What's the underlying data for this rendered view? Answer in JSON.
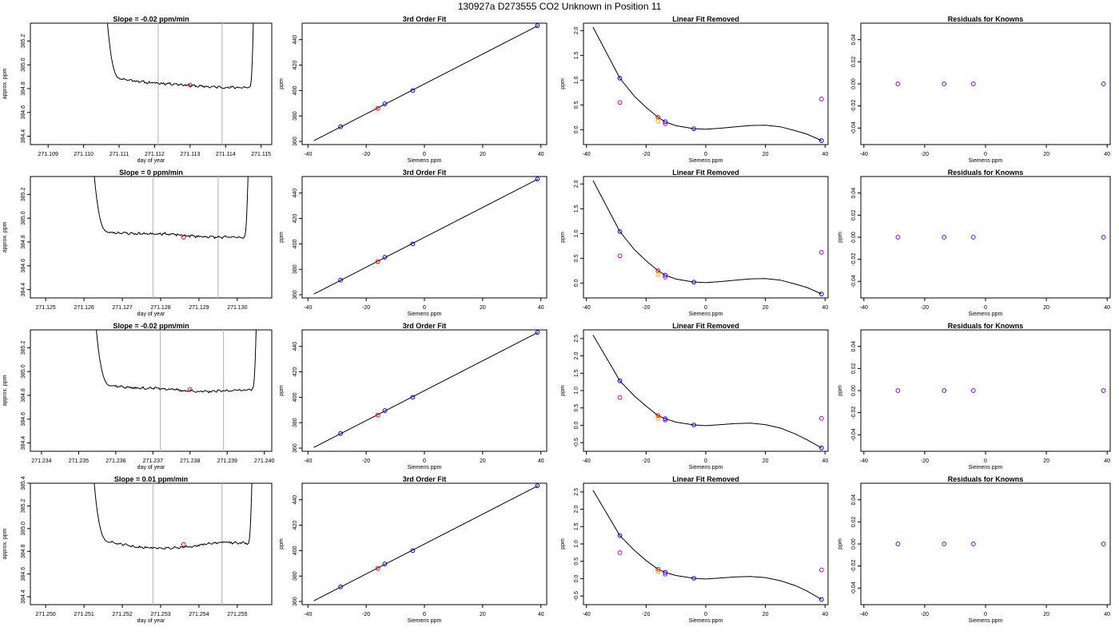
{
  "figure": {
    "suptitle": "130927a     D273555   CO2 Unknown in Position  11"
  },
  "colors": {
    "known": "#0000ff",
    "sample": "#ff0000",
    "orange": "#ffa500",
    "magenta": "#cc00cc",
    "purple": "#7f00ff",
    "marker_lines": "#bdbdbd"
  },
  "chart_data": [
    {
      "type": "line",
      "title": "Slope =   -0.02  ppm/min",
      "xlabel": "day of year",
      "ylabel": "approx. ppm",
      "xlim": [
        271.1085,
        271.1153
      ],
      "ylim": [
        384.33,
        385.35
      ],
      "xticks": [
        "271.109",
        "271.110",
        "271.111",
        "271.112",
        "271.113",
        "271.114",
        "271.115"
      ],
      "yticks": [
        "384.4",
        "384.6",
        "384.8",
        "385.0",
        "385.2"
      ],
      "vlines": [
        271.1121,
        271.1139
      ],
      "trace": {
        "x0": 271.1106,
        "x1": 271.1148,
        "plateau": [
          384.88,
          384.85,
          384.84,
          384.82,
          384.81,
          384.81
        ],
        "wiggle": 0.008,
        "seed": 11,
        "rise_left": 0.0003,
        "rise_right": 0.0001
      },
      "point": {
        "x": 271.113,
        "y": 384.83
      }
    },
    {
      "type": "scatter",
      "title": "3rd Order Fit",
      "xlabel": "Siemens ppm",
      "ylabel": "ppm",
      "xlim": [
        -42,
        42
      ],
      "ylim": [
        357.5,
        453
      ],
      "xticks": [
        "-40",
        "-20",
        "0",
        "20",
        "40"
      ],
      "yticks": [
        "360",
        "380",
        "400",
        "420",
        "440"
      ],
      "line": {
        "x": [
          -38,
          39
        ],
        "y": [
          360.5,
          451
        ]
      },
      "points": [
        {
          "x": -28.8,
          "y": 371.5,
          "color": "known"
        },
        {
          "x": -13.6,
          "y": 389.5,
          "color": "known"
        },
        {
          "x": -4.0,
          "y": 400.0,
          "color": "known"
        },
        {
          "x": 38.8,
          "y": 451.0,
          "color": "known"
        },
        {
          "x": -16.0,
          "y": 386.0,
          "color": "sample"
        }
      ]
    },
    {
      "type": "scatter",
      "title": "Linear Fit Removed",
      "xlabel": "Siemens ppm",
      "ylabel": "ppm",
      "xlim": [
        -41,
        41
      ],
      "ylim": [
        -0.3,
        2.15
      ],
      "xticks": [
        "-40",
        "-20",
        "0",
        "20",
        "40"
      ],
      "yticks": [
        "0.0",
        "0.5",
        "1.0",
        "1.5",
        "2.0"
      ],
      "curve": {
        "x": [
          -37.8,
          -33,
          -28.8,
          -24,
          -20,
          -16.0,
          -13.6,
          -10,
          -4.0,
          0,
          5,
          10,
          15,
          20,
          25,
          30,
          34,
          38.8
        ],
        "y": [
          2.07,
          1.52,
          1.04,
          0.68,
          0.45,
          0.25,
          0.16,
          0.08,
          0.02,
          0.01,
          0.03,
          0.06,
          0.085,
          0.09,
          0.06,
          -0.02,
          -0.09,
          -0.22
        ]
      },
      "points": [
        {
          "x": -28.8,
          "y": 1.04,
          "color": "known"
        },
        {
          "x": -13.6,
          "y": 0.16,
          "color": "known"
        },
        {
          "x": -4.0,
          "y": 0.02,
          "color": "known"
        },
        {
          "x": 38.8,
          "y": -0.22,
          "color": "known"
        },
        {
          "x": -16.0,
          "y": 0.25,
          "color": "sample"
        },
        {
          "x": -16.0,
          "y": 0.17,
          "color": "orange"
        },
        {
          "x": -13.6,
          "y": 0.12,
          "color": "magenta"
        },
        {
          "x": -28.8,
          "y": 0.55,
          "color": "magenta"
        },
        {
          "x": 38.8,
          "y": 0.62,
          "color": "magenta"
        }
      ]
    },
    {
      "type": "scatter",
      "title": "Residuals for Knowns",
      "xlabel": "Siemens ppm",
      "ylabel": "",
      "xlim": [
        -41,
        41
      ],
      "ylim": [
        -0.055,
        0.055
      ],
      "xticks": [
        "-40",
        "-20",
        "0",
        "20",
        "40"
      ],
      "yticks": [
        "-0.04",
        "-0.02",
        "0.00",
        "0.02",
        "0.04"
      ],
      "points": [
        {
          "x": -28.8,
          "y": 0,
          "color": "purple"
        },
        {
          "x": -13.6,
          "y": 0,
          "color": "purple"
        },
        {
          "x": -4.0,
          "y": 0,
          "color": "purple"
        },
        {
          "x": 38.8,
          "y": 0,
          "color": "purple"
        }
      ]
    },
    {
      "type": "line",
      "title": "Slope =   0  ppm/min",
      "xlabel": "day of year",
      "ylabel": "approx. ppm",
      "xlim": [
        271.1246,
        271.1309
      ],
      "ylim": [
        384.33,
        385.35
      ],
      "xticks": [
        "271.125",
        "271.126",
        "271.127",
        "271.128",
        "271.129",
        "271.130"
      ],
      "yticks": [
        "384.4",
        "384.6",
        "384.8",
        "385.0",
        "385.2"
      ],
      "vlines": [
        271.1278,
        271.1295
      ],
      "trace": {
        "x0": 271.1262,
        "x1": 271.1303,
        "plateau": [
          384.88,
          384.87,
          384.87,
          384.85,
          384.84,
          384.84
        ],
        "wiggle": 0.008,
        "seed": 23,
        "rise_left": 0.0003,
        "rise_right": 0.0001
      },
      "point": {
        "x": 271.1286,
        "y": 384.84
      }
    },
    {
      "type": "scatter",
      "title": "3rd Order Fit",
      "xlabel": "Siemens ppm",
      "ylabel": "ppm",
      "xlim": [
        -42,
        42
      ],
      "ylim": [
        357.5,
        453
      ],
      "xticks": [
        "-40",
        "-20",
        "0",
        "20",
        "40"
      ],
      "yticks": [
        "360",
        "380",
        "400",
        "420",
        "440"
      ],
      "line": {
        "x": [
          -38,
          39
        ],
        "y": [
          360.5,
          451
        ]
      },
      "points": [
        {
          "x": -28.8,
          "y": 371.5,
          "color": "known"
        },
        {
          "x": -13.6,
          "y": 389.5,
          "color": "known"
        },
        {
          "x": -4.0,
          "y": 400.0,
          "color": "known"
        },
        {
          "x": 38.8,
          "y": 451.0,
          "color": "known"
        },
        {
          "x": -16.0,
          "y": 386.0,
          "color": "sample"
        }
      ]
    },
    {
      "type": "scatter",
      "title": "Linear Fit Removed",
      "xlabel": "Siemens ppm",
      "ylabel": "ppm",
      "xlim": [
        -41,
        41
      ],
      "ylim": [
        -0.3,
        2.15
      ],
      "xticks": [
        "-40",
        "-20",
        "0",
        "20",
        "40"
      ],
      "yticks": [
        "0.0",
        "0.5",
        "1.0",
        "1.5",
        "2.0"
      ],
      "curve": {
        "x": [
          -37.8,
          -33,
          -28.8,
          -24,
          -20,
          -16.0,
          -13.6,
          -10,
          -4.0,
          0,
          5,
          10,
          15,
          20,
          25,
          30,
          34,
          38.8
        ],
        "y": [
          2.07,
          1.52,
          1.04,
          0.68,
          0.45,
          0.25,
          0.16,
          0.08,
          0.02,
          0.01,
          0.03,
          0.06,
          0.085,
          0.09,
          0.06,
          -0.02,
          -0.09,
          -0.22
        ]
      },
      "points": [
        {
          "x": -28.8,
          "y": 1.04,
          "color": "known"
        },
        {
          "x": -13.6,
          "y": 0.16,
          "color": "known"
        },
        {
          "x": -4.0,
          "y": 0.02,
          "color": "known"
        },
        {
          "x": 38.8,
          "y": -0.22,
          "color": "known"
        },
        {
          "x": -16.0,
          "y": 0.25,
          "color": "sample"
        },
        {
          "x": -16.0,
          "y": 0.17,
          "color": "orange"
        },
        {
          "x": -13.6,
          "y": 0.12,
          "color": "magenta"
        },
        {
          "x": -28.8,
          "y": 0.55,
          "color": "magenta"
        },
        {
          "x": 38.8,
          "y": 0.62,
          "color": "magenta"
        }
      ]
    },
    {
      "type": "scatter",
      "title": "Residuals for Knowns",
      "xlabel": "Siemens ppm",
      "ylabel": "ppm",
      "xlim": [
        -41,
        41
      ],
      "ylim": [
        -0.055,
        0.055
      ],
      "xticks": [
        "-40",
        "-20",
        "0",
        "20",
        "40"
      ],
      "yticks": [
        "-0.04",
        "-0.02",
        "0.00",
        "0.02",
        "0.04"
      ],
      "points": [
        {
          "x": -28.8,
          "y": 0,
          "color": "purple"
        },
        {
          "x": -13.6,
          "y": 0,
          "color": "purple"
        },
        {
          "x": -4.0,
          "y": 0,
          "color": "purple"
        },
        {
          "x": 38.8,
          "y": 0,
          "color": "purple"
        }
      ]
    },
    {
      "type": "line",
      "title": "Slope =   -0.02  ppm/min",
      "xlabel": "day of year",
      "ylabel": "approx. ppm",
      "xlim": [
        271.2337,
        271.2402
      ],
      "ylim": [
        384.33,
        385.35
      ],
      "xticks": [
        "271.234",
        "271.235",
        "271.236",
        "271.237",
        "271.238",
        "271.239",
        "271.240"
      ],
      "yticks": [
        "384.4",
        "384.6",
        "384.8",
        "385.0",
        "385.2"
      ],
      "vlines": [
        271.2372,
        271.2389
      ],
      "trace": {
        "x0": 271.2354,
        "x1": 271.2398,
        "plateau": [
          384.88,
          384.86,
          384.86,
          384.84,
          384.83,
          384.84,
          384.85
        ],
        "wiggle": 0.008,
        "seed": 37,
        "rise_left": 0.0003,
        "rise_right": 0.0001
      },
      "point": {
        "x": 271.238,
        "y": 384.85
      }
    },
    {
      "type": "scatter",
      "title": "3rd Order Fit",
      "xlabel": "Siemens ppm",
      "ylabel": "ppm",
      "xlim": [
        -42,
        42
      ],
      "ylim": [
        357.5,
        453
      ],
      "xticks": [
        "-40",
        "-20",
        "0",
        "20",
        "40"
      ],
      "yticks": [
        "360",
        "380",
        "400",
        "420",
        "440"
      ],
      "line": {
        "x": [
          -38,
          39
        ],
        "y": [
          360.5,
          451
        ]
      },
      "points": [
        {
          "x": -28.8,
          "y": 371.5,
          "color": "known"
        },
        {
          "x": -13.6,
          "y": 389.5,
          "color": "known"
        },
        {
          "x": -4.0,
          "y": 400.0,
          "color": "known"
        },
        {
          "x": 38.8,
          "y": 451.0,
          "color": "known"
        },
        {
          "x": -16.0,
          "y": 386.0,
          "color": "sample"
        }
      ]
    },
    {
      "type": "scatter",
      "title": "Linear Fit Removed",
      "xlabel": "Siemens ppm",
      "ylabel": "ppm",
      "xlim": [
        -41,
        41
      ],
      "ylim": [
        -0.75,
        2.75
      ],
      "xticks": [
        "-40",
        "-20",
        "0",
        "20",
        "40"
      ],
      "yticks": [
        "-0.5",
        "0.0",
        "0.5",
        "1.0",
        "1.5",
        "2.0",
        "2.5"
      ],
      "curve": {
        "x": [
          -37.8,
          -33,
          -28.8,
          -24,
          -20,
          -16.0,
          -13.6,
          -10,
          -4.0,
          0,
          5,
          10,
          15,
          20,
          25,
          30,
          34,
          38.8
        ],
        "y": [
          2.6,
          1.9,
          1.28,
          0.85,
          0.55,
          0.28,
          0.19,
          0.09,
          0.01,
          -0.01,
          0.02,
          0.05,
          0.06,
          0.02,
          -0.08,
          -0.25,
          -0.42,
          -0.65
        ]
      },
      "points": [
        {
          "x": -28.8,
          "y": 1.28,
          "color": "known"
        },
        {
          "x": -13.6,
          "y": 0.19,
          "color": "known"
        },
        {
          "x": -4.0,
          "y": 0.01,
          "color": "known"
        },
        {
          "x": 38.8,
          "y": -0.65,
          "color": "known"
        },
        {
          "x": -16.0,
          "y": 0.28,
          "color": "sample"
        },
        {
          "x": -16.0,
          "y": 0.2,
          "color": "orange"
        },
        {
          "x": -13.6,
          "y": 0.15,
          "color": "magenta"
        },
        {
          "x": -28.8,
          "y": 0.8,
          "color": "magenta"
        },
        {
          "x": 38.8,
          "y": 0.2,
          "color": "magenta"
        }
      ]
    },
    {
      "type": "scatter",
      "title": "Residuals for Knowns",
      "xlabel": "Siemens ppm",
      "ylabel": "ppm",
      "xlim": [
        -41,
        41
      ],
      "ylim": [
        -0.055,
        0.055
      ],
      "xticks": [
        "-40",
        "-20",
        "0",
        "20",
        "40"
      ],
      "yticks": [
        "-0.04",
        "-0.02",
        "0.00",
        "0.02",
        "0.04"
      ],
      "points": [
        {
          "x": -28.8,
          "y": 0,
          "color": "purple"
        },
        {
          "x": -13.6,
          "y": 0,
          "color": "purple"
        },
        {
          "x": -4.0,
          "y": 0,
          "color": "purple"
        },
        {
          "x": 38.8,
          "y": 0,
          "color": "purple"
        }
      ]
    },
    {
      "type": "line",
      "title": "Slope =   0.01  ppm/min",
      "xlabel": "day of year",
      "ylabel": "approx. ppm",
      "xlim": [
        271.2496,
        271.2559
      ],
      "ylim": [
        384.33,
        385.4
      ],
      "xticks": [
        "271.250",
        "271.251",
        "271.252",
        "271.253",
        "271.254",
        "271.255"
      ],
      "yticks": [
        "384.4",
        "384.6",
        "384.8",
        "385.0",
        "385.2",
        "385.4"
      ],
      "vlines": [
        271.2528,
        271.2546
      ],
      "trace": {
        "x0": 271.2512,
        "x1": 271.2554,
        "plateau": [
          384.88,
          384.84,
          384.83,
          384.83,
          384.86,
          384.88,
          384.87
        ],
        "wiggle": 0.008,
        "seed": 51,
        "rise_left": 0.0003,
        "rise_right": 0.0001
      },
      "point": {
        "x": 271.2536,
        "y": 384.86
      }
    },
    {
      "type": "scatter",
      "title": "3rd Order Fit",
      "xlabel": "Siemens ppm",
      "ylabel": "ppm",
      "xlim": [
        -42,
        42
      ],
      "ylim": [
        357.5,
        453
      ],
      "xticks": [
        "-40",
        "-20",
        "0",
        "20",
        "40"
      ],
      "yticks": [
        "360",
        "380",
        "400",
        "420",
        "440"
      ],
      "line": {
        "x": [
          -38,
          39
        ],
        "y": [
          360.5,
          451
        ]
      },
      "points": [
        {
          "x": -28.8,
          "y": 371.5,
          "color": "known"
        },
        {
          "x": -13.6,
          "y": 389.5,
          "color": "known"
        },
        {
          "x": -4.0,
          "y": 400.0,
          "color": "known"
        },
        {
          "x": 38.8,
          "y": 451.0,
          "color": "known"
        },
        {
          "x": -16.0,
          "y": 386.0,
          "color": "sample"
        }
      ]
    },
    {
      "type": "scatter",
      "title": "Linear Fit Removed",
      "xlabel": "Siemens ppm",
      "ylabel": "ppm",
      "xlim": [
        -41,
        41
      ],
      "ylim": [
        -0.75,
        2.75
      ],
      "xticks": [
        "-40",
        "-20",
        "0",
        "20",
        "40"
      ],
      "yticks": [
        "-0.5",
        "0.0",
        "0.5",
        "1.0",
        "1.5",
        "2.0",
        "2.5"
      ],
      "curve": {
        "x": [
          -37.8,
          -33,
          -28.8,
          -24,
          -20,
          -16.0,
          -13.6,
          -10,
          -4.0,
          0,
          5,
          10,
          15,
          20,
          25,
          30,
          34,
          38.8
        ],
        "y": [
          2.55,
          1.85,
          1.24,
          0.82,
          0.52,
          0.27,
          0.18,
          0.09,
          0.01,
          -0.01,
          0.02,
          0.05,
          0.06,
          0.03,
          -0.06,
          -0.2,
          -0.36,
          -0.6
        ]
      },
      "points": [
        {
          "x": -28.8,
          "y": 1.24,
          "color": "known"
        },
        {
          "x": -13.6,
          "y": 0.18,
          "color": "known"
        },
        {
          "x": -4.0,
          "y": 0.01,
          "color": "known"
        },
        {
          "x": 38.8,
          "y": -0.6,
          "color": "known"
        },
        {
          "x": -16.0,
          "y": 0.27,
          "color": "sample"
        },
        {
          "x": -16.0,
          "y": 0.2,
          "color": "orange"
        },
        {
          "x": -13.6,
          "y": 0.13,
          "color": "magenta"
        },
        {
          "x": -28.8,
          "y": 0.75,
          "color": "magenta"
        },
        {
          "x": 38.8,
          "y": 0.25,
          "color": "magenta"
        }
      ]
    },
    {
      "type": "scatter",
      "title": "Residuals for Knowns",
      "xlabel": "Siemens ppm",
      "ylabel": "ppm",
      "xlim": [
        -41,
        41
      ],
      "ylim": [
        -0.055,
        0.055
      ],
      "xticks": [
        "-40",
        "-20",
        "0",
        "20",
        "40"
      ],
      "yticks": [
        "-0.04",
        "-0.02",
        "0.00",
        "0.02",
        "0.04"
      ],
      "points": [
        {
          "x": -28.8,
          "y": 0,
          "color": "purple"
        },
        {
          "x": -13.6,
          "y": 0,
          "color": "purple"
        },
        {
          "x": -4.0,
          "y": 0,
          "color": "purple"
        },
        {
          "x": 38.8,
          "y": 0,
          "color": "purple"
        }
      ]
    }
  ]
}
